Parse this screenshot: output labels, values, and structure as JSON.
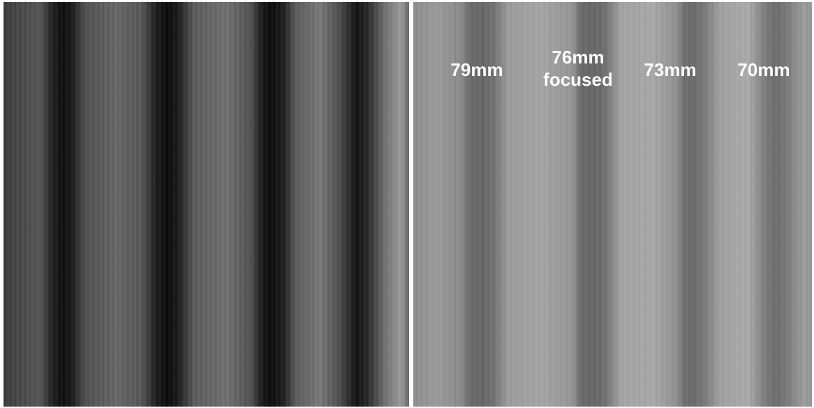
{
  "labels": [
    {
      "lines": [
        "79mm"
      ]
    },
    {
      "lines": [
        "76mm",
        "focused"
      ]
    },
    {
      "lines": [
        "73mm"
      ]
    },
    {
      "lines": [
        "70mm"
      ]
    }
  ]
}
